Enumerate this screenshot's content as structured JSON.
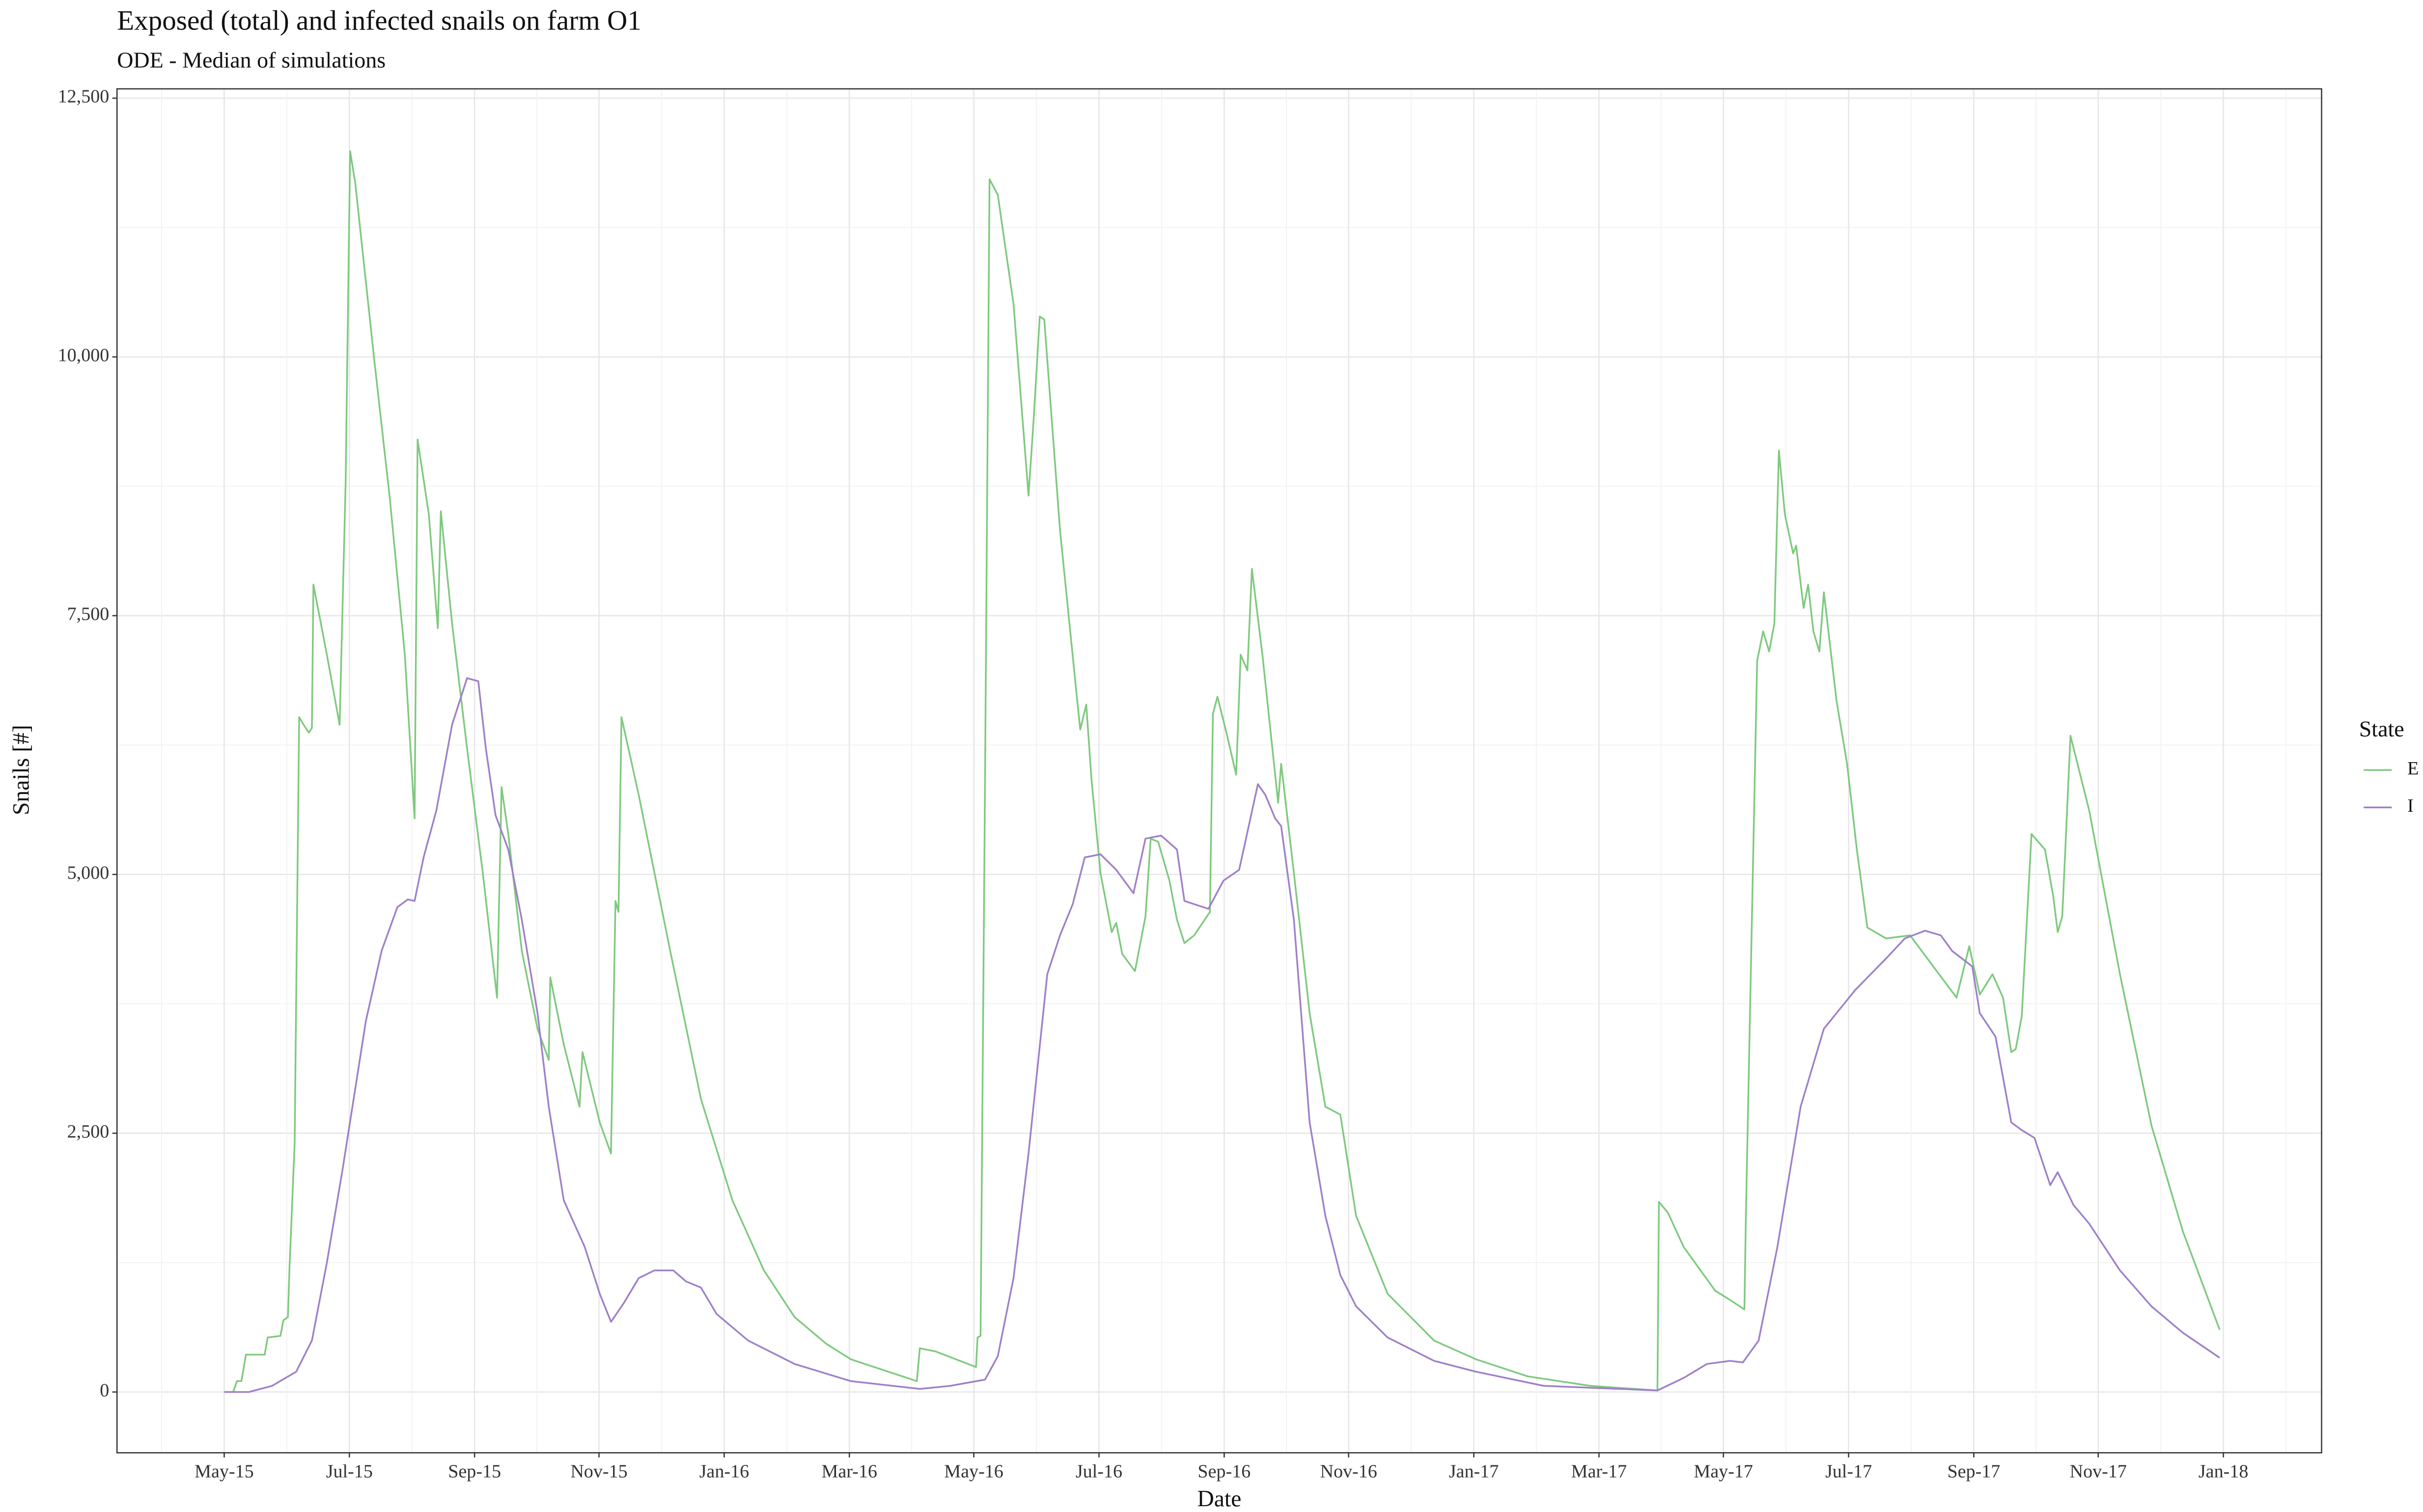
{
  "chart_data": {
    "type": "line",
    "title": "Exposed (total) and infected snails on farm O1",
    "subtitle": "ODE - Median of simulations",
    "x_label": "Date",
    "y_label": "Snails [#]",
    "legend_title": "State",
    "grid": true,
    "xlim": [
      2015.19,
      2018.131
    ],
    "xticks": [
      {
        "value": 2015.333,
        "label": "May-15"
      },
      {
        "value": 2015.5,
        "label": "Jul-15"
      },
      {
        "value": 2015.667,
        "label": "Sep-15"
      },
      {
        "value": 2015.833,
        "label": "Nov-15"
      },
      {
        "value": 2016.0,
        "label": "Jan-16"
      },
      {
        "value": 2016.167,
        "label": "Mar-16"
      },
      {
        "value": 2016.333,
        "label": "May-16"
      },
      {
        "value": 2016.5,
        "label": "Jul-16"
      },
      {
        "value": 2016.667,
        "label": "Sep-16"
      },
      {
        "value": 2016.833,
        "label": "Nov-16"
      },
      {
        "value": 2017.0,
        "label": "Jan-17"
      },
      {
        "value": 2017.167,
        "label": "Mar-17"
      },
      {
        "value": 2017.333,
        "label": "May-17"
      },
      {
        "value": 2017.5,
        "label": "Jul-17"
      },
      {
        "value": 2017.667,
        "label": "Sep-17"
      },
      {
        "value": 2017.833,
        "label": "Nov-17"
      },
      {
        "value": 2018.0,
        "label": "Jan-18"
      }
    ],
    "ylim": [
      -587,
      12590
    ],
    "yticks": [
      0,
      {
        "value": 2500,
        "label": "2,500"
      },
      {
        "value": 5000,
        "label": "5,000"
      },
      {
        "value": 7500,
        "label": "7,500"
      },
      {
        "value": 10000,
        "label": "10,000"
      },
      {
        "value": 12500,
        "label": "12,500"
      }
    ],
    "series": [
      {
        "name": "E",
        "color": "#7fc97f",
        "x": [
          2015.333,
          2015.345,
          2015.35,
          2015.356,
          2015.362,
          2015.387,
          2015.391,
          2015.408,
          2015.412,
          2015.418,
          2015.42,
          2015.427,
          2015.433,
          2015.439,
          2015.446,
          2015.45,
          2015.452,
          2015.46,
          2015.47,
          2015.487,
          2015.495,
          2015.501,
          2015.508,
          2015.533,
          2015.554,
          2015.574,
          2015.587,
          2015.591,
          2015.606,
          2015.618,
          2015.622,
          2015.637,
          2015.657,
          2015.678,
          2015.697,
          2015.703,
          2015.712,
          2015.73,
          2015.751,
          2015.766,
          2015.768,
          2015.786,
          2015.807,
          2015.811,
          2015.834,
          2015.849,
          2015.855,
          2015.859,
          2015.863,
          2015.886,
          2015.928,
          2015.969,
          2016.011,
          2016.053,
          2016.094,
          2016.136,
          2016.169,
          2016.219,
          2016.257,
          2016.261,
          2016.282,
          2016.336,
          2016.338,
          2016.342,
          2016.348,
          2016.354,
          2016.365,
          2016.386,
          2016.406,
          2016.413,
          2016.421,
          2016.427,
          2016.448,
          2016.469,
          2016.475,
          2016.483,
          2016.49,
          2016.502,
          2016.517,
          2016.523,
          2016.531,
          2016.548,
          2016.562,
          2016.569,
          2016.579,
          2016.594,
          2016.604,
          2016.614,
          2016.627,
          2016.648,
          2016.652,
          2016.658,
          2016.67,
          2016.683,
          2016.689,
          2016.698,
          2016.704,
          2016.718,
          2016.739,
          2016.743,
          2016.76,
          2016.781,
          2016.802,
          2016.822,
          2016.843,
          2016.885,
          2016.947,
          2017.003,
          2017.072,
          2017.155,
          2017.245,
          2017.247,
          2017.259,
          2017.28,
          2017.322,
          2017.342,
          2017.361,
          2017.363,
          2017.378,
          2017.386,
          2017.394,
          2017.401,
          2017.407,
          2017.415,
          2017.426,
          2017.43,
          2017.44,
          2017.446,
          2017.453,
          2017.461,
          2017.467,
          2017.484,
          2017.498,
          2017.511,
          2017.525,
          2017.55,
          2017.582,
          2017.613,
          2017.644,
          2017.661,
          2017.675,
          2017.692,
          2017.706,
          2017.717,
          2017.723,
          2017.731,
          2017.744,
          2017.762,
          2017.773,
          2017.779,
          2017.785,
          2017.796,
          2017.821,
          2017.862,
          2017.904,
          2017.946,
          2017.995
        ],
        "values": [
          0,
          0,
          105,
          105,
          361,
          361,
          527,
          542,
          693,
          723,
          1175,
          2410,
          6520,
          6446,
          6370,
          6415,
          7800,
          7500,
          7123,
          6446,
          8780,
          11988,
          11671,
          9985,
          8630,
          7123,
          5542,
          9202,
          8479,
          7380,
          8509,
          7425,
          6220,
          5015,
          3810,
          5843,
          5391,
          4262,
          3509,
          3208,
          4006,
          3358,
          2756,
          3283,
          2605,
          2304,
          4744,
          4638,
          6520,
          5768,
          4262,
          2831,
          1852,
          1175,
          723,
          467,
          316,
          196,
          105,
          422,
          392,
          241,
          527,
          542,
          5918,
          11717,
          11566,
          10512,
          8660,
          9413,
          10391,
          10361,
          8328,
          6822,
          6400,
          6641,
          5918,
          5015,
          4443,
          4533,
          4232,
          4066,
          4593,
          5346,
          5316,
          4940,
          4563,
          4337,
          4412,
          4638,
          6551,
          6717,
          6370,
          5964,
          7123,
          6972,
          7952,
          7123,
          5693,
          6069,
          5015,
          3660,
          2756,
          2680,
          1702,
          949,
          497,
          316,
          151,
          60,
          15,
          1837,
          1732,
          1401,
          979,
          889,
          798,
          1702,
          7063,
          7349,
          7154,
          7425,
          9096,
          8479,
          8102,
          8177,
          7575,
          7800,
          7349,
          7154,
          7726,
          6672,
          6069,
          5241,
          4488,
          4382,
          4412,
          4111,
          3810,
          4307,
          3840,
          4036,
          3810,
          3283,
          3313,
          3629,
          5391,
          5241,
          4789,
          4443,
          4593,
          6340,
          5617,
          4036,
          2575,
          1551,
          602
        ]
      },
      {
        "name": "I",
        "color": "#9e80c9",
        "x": [
          2015.333,
          2015.366,
          2015.397,
          2015.429,
          2015.45,
          2015.47,
          2015.491,
          2015.522,
          2015.543,
          2015.564,
          2015.578,
          2015.587,
          2015.599,
          2015.616,
          2015.637,
          2015.657,
          2015.672,
          2015.682,
          2015.695,
          2015.712,
          2015.73,
          2015.751,
          2015.766,
          2015.786,
          2015.814,
          2015.834,
          2015.849,
          2015.866,
          2015.886,
          2015.907,
          2015.932,
          2015.949,
          2015.969,
          2015.99,
          2016.032,
          2016.094,
          2016.169,
          2016.261,
          2016.302,
          2016.348,
          2016.365,
          2016.386,
          2016.406,
          2016.431,
          2016.448,
          2016.465,
          2016.481,
          2016.502,
          2016.523,
          2016.546,
          2016.562,
          2016.583,
          2016.604,
          2016.614,
          2016.646,
          2016.666,
          2016.687,
          2016.712,
          2016.722,
          2016.735,
          2016.743,
          2016.76,
          2016.781,
          2016.802,
          2016.822,
          2016.843,
          2016.885,
          2016.947,
          2017.003,
          2017.093,
          2017.245,
          2017.28,
          2017.311,
          2017.342,
          2017.359,
          2017.38,
          2017.405,
          2017.436,
          2017.467,
          2017.509,
          2017.55,
          2017.575,
          2017.602,
          2017.623,
          2017.638,
          2017.665,
          2017.675,
          2017.696,
          2017.717,
          2017.731,
          2017.748,
          2017.769,
          2017.779,
          2017.8,
          2017.821,
          2017.862,
          2017.904,
          2017.946,
          2017.995
        ],
        "values": [
          0,
          0,
          60,
          196,
          497,
          1250,
          2154,
          3584,
          4262,
          4684,
          4759,
          4744,
          5165,
          5617,
          6446,
          6897,
          6867,
          6220,
          5572,
          5241,
          4563,
          3660,
          2756,
          1852,
          1401,
          949,
          678,
          858,
          1100,
          1175,
          1175,
          1069,
          1009,
          753,
          497,
          271,
          105,
          30,
          60,
          120,
          346,
          1100,
          2304,
          4036,
          4412,
          4714,
          5165,
          5195,
          5045,
          4819,
          5346,
          5376,
          5241,
          4744,
          4668,
          4940,
          5045,
          5873,
          5768,
          5542,
          5467,
          4563,
          2605,
          1702,
          1129,
          828,
          527,
          301,
          196,
          60,
          15,
          136,
          271,
          301,
          286,
          497,
          1401,
          2756,
          3509,
          3885,
          4188,
          4382,
          4457,
          4412,
          4262,
          4111,
          3660,
          3433,
          2605,
          2530,
          2455,
          1999,
          2124,
          1807,
          1626,
          1175,
          828,
          572,
          331
        ]
      }
    ]
  }
}
